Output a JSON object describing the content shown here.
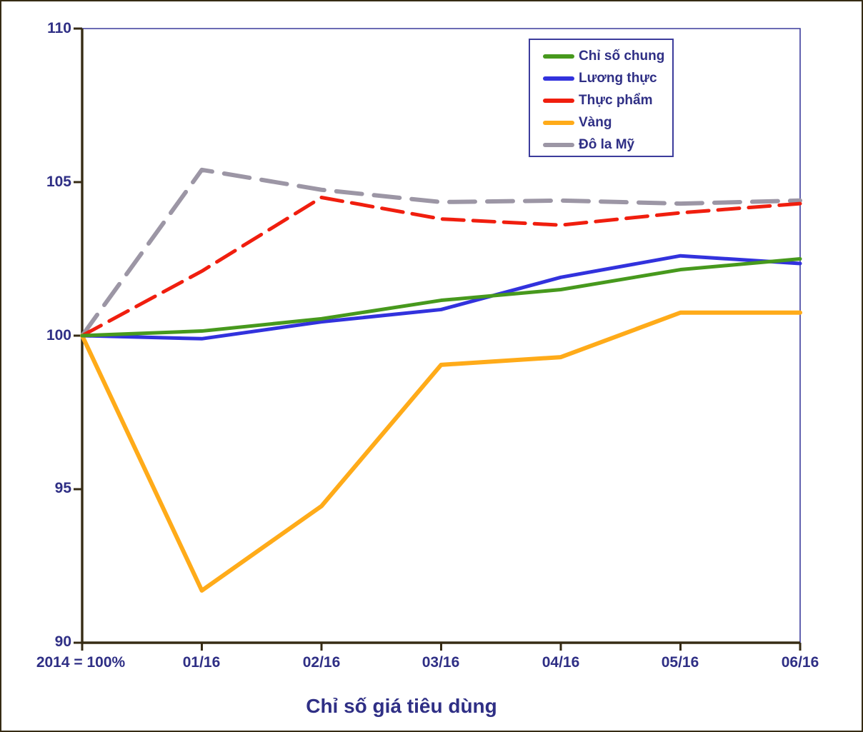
{
  "chart_data": {
    "type": "line",
    "title": "Chỉ số giá tiêu dùng",
    "x_note": "2014 = 100%",
    "categories": [
      "2014 = 100%",
      "01/16",
      "02/16",
      "03/16",
      "04/16",
      "05/16",
      "06/16"
    ],
    "y_ticks": [
      110,
      105,
      100,
      95,
      90
    ],
    "ylim": [
      90,
      110
    ],
    "grid": false,
    "legend_position": "top-right",
    "series": [
      {
        "name": "Chỉ số chung",
        "color": "#47991d",
        "dash": "",
        "width": 5,
        "values": [
          100,
          100.15,
          100.55,
          101.15,
          101.5,
          102.15,
          102.5
        ]
      },
      {
        "name": "Lương thực",
        "color": "#3232dd",
        "dash": "",
        "width": 5,
        "values": [
          100,
          99.9,
          100.45,
          100.85,
          101.9,
          102.6,
          102.35
        ]
      },
      {
        "name": "Thực phẩm",
        "color": "#f01e0e",
        "dash": "30 13",
        "width": 5,
        "values": [
          100,
          102.1,
          104.5,
          103.8,
          103.6,
          104.0,
          104.3
        ]
      },
      {
        "name": "Vàng",
        "color": "#ffab19",
        "dash": "",
        "width": 6,
        "values": [
          100,
          91.7,
          94.45,
          99.05,
          99.3,
          100.75,
          100.75
        ]
      },
      {
        "name": "Đô la Mỹ",
        "color": "#9c96a5",
        "dash": "36 17",
        "width": 6,
        "values": [
          100,
          105.4,
          104.75,
          104.35,
          104.4,
          104.3,
          104.4
        ]
      }
    ]
  },
  "colors": {
    "axis": "#362b14",
    "plot_border": "#3c3c9c",
    "label_text": "#2f2f85",
    "background": "#ffffff"
  }
}
